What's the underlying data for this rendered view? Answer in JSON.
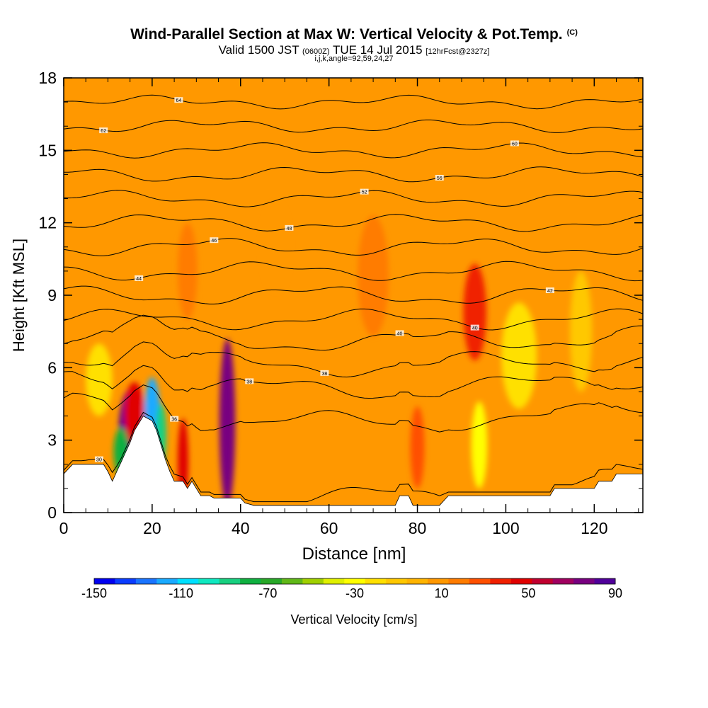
{
  "header": {
    "title": "Wind-Parallel Section at Max W: Vertical Velocity & Pot.Temp.",
    "copyright": "(C)",
    "subtitle_main": "Valid 1500 JST",
    "subtitle_zulu": "(0600Z)",
    "subtitle_date": "TUE 14 Jul 2015",
    "subtitle_fcst": "[12hrFcst@2327z]",
    "subtitle2": "i,j,k,angle=92,59,24,27"
  },
  "chart_data": {
    "type": "heatmap",
    "xlabel": "Distance [nm]",
    "ylabel": "Height [Kft MSL]",
    "xlim": [
      0,
      131
    ],
    "ylim": [
      0,
      18
    ],
    "x_ticks": [
      0,
      20,
      40,
      60,
      80,
      100,
      120
    ],
    "y_ticks": [
      0,
      3,
      6,
      9,
      12,
      15,
      18
    ],
    "grid": false,
    "background_value_cm_s": 5,
    "colorbar": {
      "label": "Vertical Velocity [cm/s]",
      "tick_labels": [
        -150,
        -110,
        -70,
        -30,
        10,
        50,
        90
      ],
      "colors": [
        "#0000f0",
        "#0a3cff",
        "#1a74ff",
        "#1aaaff",
        "#00e0ff",
        "#10e8c0",
        "#18d080",
        "#10b040",
        "#28a828",
        "#60b818",
        "#a0d000",
        "#e0f000",
        "#ffff00",
        "#ffe000",
        "#ffc800",
        "#ffb400",
        "#ff9800",
        "#ff7c00",
        "#ff5000",
        "#f02000",
        "#e00000",
        "#c00030",
        "#a00060",
        "#780080",
        "#50009a"
      ]
    },
    "terrain_kft": [
      [
        0,
        1.6
      ],
      [
        2,
        2
      ],
      [
        5,
        2
      ],
      [
        9,
        2
      ],
      [
        10,
        1.7
      ],
      [
        11,
        1.3
      ],
      [
        12,
        1.7
      ],
      [
        13,
        2.1
      ],
      [
        14,
        2.5
      ],
      [
        15,
        2.9
      ],
      [
        16,
        3.4
      ],
      [
        17,
        3.7
      ],
      [
        18,
        4
      ],
      [
        19,
        3.9
      ],
      [
        20,
        3.8
      ],
      [
        21,
        3.4
      ],
      [
        22,
        2.8
      ],
      [
        23,
        2.2
      ],
      [
        24,
        1.7
      ],
      [
        25,
        1.3
      ],
      [
        27,
        1.3
      ],
      [
        28,
        1
      ],
      [
        29,
        1.3
      ],
      [
        30,
        1
      ],
      [
        31,
        0.7
      ],
      [
        33,
        0.7
      ],
      [
        34,
        0.6
      ],
      [
        37,
        0.6
      ],
      [
        40,
        0.6
      ],
      [
        41,
        0.4
      ],
      [
        43,
        0.3
      ],
      [
        50,
        0.3
      ],
      [
        60,
        0.3
      ],
      [
        70,
        0.3
      ],
      [
        75,
        0.3
      ],
      [
        76,
        0.7
      ],
      [
        78,
        0.7
      ],
      [
        79,
        0.3
      ],
      [
        85,
        0.3
      ],
      [
        87,
        0.7
      ],
      [
        90,
        0.7
      ],
      [
        100,
        0.7
      ],
      [
        110,
        0.7
      ],
      [
        111,
        1
      ],
      [
        120,
        1
      ],
      [
        121,
        1.3
      ],
      [
        124,
        1.3
      ],
      [
        125,
        1.6
      ],
      [
        131,
        1.6
      ]
    ],
    "theta_contours_K": [
      {
        "y_base": 0.4,
        "label": "30"
      },
      {
        "y_base": 3.6,
        "label": "36"
      },
      {
        "y_base": 5.0,
        "label": "38"
      },
      {
        "y_base": 6.0,
        "label": "38"
      },
      {
        "y_base": 7.0,
        "label": "40"
      },
      {
        "y_base": 8.0,
        "label": "40"
      },
      {
        "y_base": 9.0,
        "label": "42"
      },
      {
        "y_base": 10.0,
        "label": "44"
      },
      {
        "y_base": 11.0,
        "label": "46"
      },
      {
        "y_base": 12.0,
        "label": "48"
      },
      {
        "y_base": 13.0,
        "label": "52"
      },
      {
        "y_base": 14.0,
        "label": "56"
      },
      {
        "y_base": 15.0,
        "label": "60"
      },
      {
        "y_base": 16.0,
        "label": "62"
      },
      {
        "y_base": 17.0,
        "label": "64"
      }
    ],
    "velocity_features": [
      {
        "x": 15,
        "y": 3.2,
        "rx": 2.6,
        "ry": 1.9,
        "v": 90
      },
      {
        "x": 16,
        "y": 4.1,
        "rx": 2.3,
        "ry": 1.3,
        "v": 50
      },
      {
        "x": 13,
        "y": 2.5,
        "rx": 1.7,
        "ry": 1.0,
        "v": -80
      },
      {
        "x": 20,
        "y": 4.0,
        "rx": 1.8,
        "ry": 1.6,
        "v": -120
      },
      {
        "x": 22,
        "y": 3.2,
        "rx": 1.2,
        "ry": 1.3,
        "v": -90
      },
      {
        "x": 27,
        "y": 2.1,
        "rx": 1.2,
        "ry": 1.8,
        "v": 50
      },
      {
        "x": 37,
        "y": 3.7,
        "rx": 1.8,
        "ry": 3.5,
        "v": 75
      },
      {
        "x": 70,
        "y": 9.8,
        "rx": 3.5,
        "ry": 2.5,
        "v": 15
      },
      {
        "x": 93,
        "y": 8.3,
        "rx": 2.6,
        "ry": 2.0,
        "v": 35
      },
      {
        "x": 80,
        "y": 2.7,
        "rx": 1.6,
        "ry": 1.7,
        "v": 25
      },
      {
        "x": 94,
        "y": 2.8,
        "rx": 1.8,
        "ry": 1.8,
        "v": -30
      },
      {
        "x": 103,
        "y": 6.5,
        "rx": 4.0,
        "ry": 2.2,
        "v": -20
      },
      {
        "x": 28,
        "y": 10.0,
        "rx": 2.2,
        "ry": 2.0,
        "v": 15
      },
      {
        "x": 48,
        "y": 11.0,
        "rx": 3.0,
        "ry": 1.8,
        "v": 12
      },
      {
        "x": 8,
        "y": 5.5,
        "rx": 3.0,
        "ry": 1.5,
        "v": -25
      },
      {
        "x": 117,
        "y": 7.5,
        "rx": 2.5,
        "ry": 2.5,
        "v": -15
      }
    ]
  }
}
